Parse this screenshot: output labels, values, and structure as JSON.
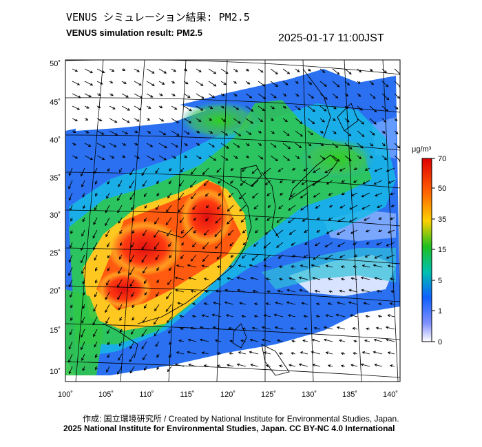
{
  "header": {
    "title_jp": "VENUS シミュレーション結果: PM2.5",
    "title_en": "VENUS simulation result: PM2.5",
    "timestamp": "2025-01-17 11:00JST"
  },
  "map": {
    "lon_labels": [
      "100˚",
      "105˚",
      "110˚",
      "115˚",
      "120˚",
      "125˚",
      "130˚",
      "135˚",
      "140˚"
    ],
    "lat_labels": [
      "50˚",
      "45˚",
      "40˚",
      "35˚",
      "30˚",
      "25˚",
      "20˚",
      "15˚",
      "10˚"
    ]
  },
  "colorbar": {
    "unit": "μg/m³",
    "ticks": [
      "70",
      "50",
      "35",
      "15",
      "5",
      "1",
      "0"
    ],
    "colors": [
      "#ff0000",
      "#ff8000",
      "#ffd700",
      "#00c000",
      "#00c0c0",
      "#1a64ff",
      "#9fb0ff",
      "#ffffff"
    ]
  },
  "footer": {
    "credit_line": "作成: 国立環境研究所 / Created by National Institute for Environmental Studies, Japan.",
    "license_line": "2025 National Institute for Environmental Studies, Japan. CC BY-NC 4.0 International"
  }
}
